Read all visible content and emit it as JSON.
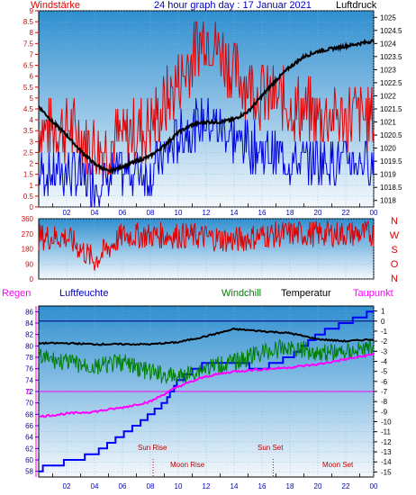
{
  "header": {
    "left_label": "Windstärke",
    "title": "24 hour graph day : 17 Januar 2021",
    "right_label": "Luftdruck"
  },
  "bottom_header": {
    "regen": "Regen",
    "luftfeuchte": "Luftfeuchte",
    "windchill": "Windchill",
    "temperatur": "Temperatur",
    "taupunkt": "Taupunkt"
  },
  "annotations": {
    "sun_rise": "Sun Rise",
    "sun_set": "Sun Set",
    "moon_rise": "Moon Rise",
    "moon_set": "Moon Set"
  },
  "colors": {
    "wind_gust": "#e00000",
    "wind_avg": "#0000e0",
    "pressure": "#000000",
    "humidity": "#0000ff",
    "windchill": "#008000",
    "temperature": "#000000",
    "dewpoint": "#ff00ff",
    "gradient_top": "#2f8fd0",
    "gradient_bottom": "#f4f8fc"
  },
  "chart_data": [
    {
      "type": "line",
      "x_ticks": [
        "02",
        "04",
        "06",
        "08",
        "10",
        "12",
        "14",
        "16",
        "18",
        "20",
        "22",
        "00"
      ],
      "y_left_ticks": [
        "0",
        "0.5",
        "1",
        "1.5",
        "2",
        "2.5",
        "3",
        "3.5",
        "4",
        "4.5",
        "5",
        "5.5",
        "6",
        "6.5",
        "7",
        "7.5",
        "8",
        "8.5",
        "9"
      ],
      "y_left_range": [
        0,
        9
      ],
      "y_right_ticks": [
        "1018",
        "1018.5",
        "1019",
        "1019.5",
        "1020",
        "1020.5",
        "1021",
        "1021.5",
        "1022",
        "1022.5",
        "1023",
        "1023.5",
        "1024",
        "1024.5",
        "1025"
      ],
      "y_right_range": [
        1017.75,
        1025.25
      ],
      "pressure_hours": [
        0,
        1,
        2,
        3,
        4,
        5,
        6,
        7,
        8,
        9,
        10,
        11,
        12,
        13,
        14,
        15,
        16,
        17,
        18,
        19,
        20,
        21,
        22,
        23,
        24
      ],
      "pressure_values": [
        1021.6,
        1021.0,
        1020.5,
        1019.9,
        1019.4,
        1019.1,
        1019.3,
        1019.5,
        1019.7,
        1020.1,
        1020.6,
        1020.9,
        1021.0,
        1021.0,
        1021.1,
        1021.4,
        1022.0,
        1022.6,
        1023.1,
        1023.5,
        1023.7,
        1023.8,
        1023.9,
        1024.0,
        1024.1
      ],
      "gust_profile_hours": [
        0,
        2,
        4,
        6,
        8,
        10,
        12,
        14,
        16,
        18,
        20,
        22,
        24
      ],
      "gust_profile_values": [
        3.5,
        3.5,
        2.5,
        3.0,
        3.5,
        5.5,
        8.0,
        6.0,
        5.0,
        4.5,
        4.0,
        4.0,
        4.0
      ],
      "avg_profile_values": [
        1.5,
        1.5,
        1.0,
        1.5,
        1.5,
        3.0,
        4.0,
        3.0,
        2.5,
        2.0,
        2.0,
        2.0,
        2.0
      ]
    },
    {
      "type": "line",
      "y_ticks": [
        "360",
        "270",
        "180",
        "90",
        "0"
      ],
      "y_range": [
        0,
        360
      ],
      "compass_labels": [
        "N",
        "W",
        "S",
        "O",
        "N"
      ],
      "direction_profile_hours": [
        0,
        2,
        4,
        6,
        8,
        10,
        12,
        14,
        16,
        18,
        20,
        22,
        24
      ],
      "direction_profile_values": [
        250,
        250,
        110,
        260,
        260,
        260,
        250,
        230,
        260,
        270,
        270,
        270,
        270
      ]
    },
    {
      "type": "line",
      "x_ticks": [
        "02",
        "04",
        "06",
        "08",
        "10",
        "12",
        "14",
        "16",
        "18",
        "20",
        "22",
        "00"
      ],
      "humidity_ticks": [
        "58",
        "60",
        "62",
        "64",
        "66",
        "68",
        "70",
        "72",
        "74",
        "76",
        "78",
        "80",
        "82",
        "84",
        "86"
      ],
      "humidity_range": [
        57,
        87
      ],
      "temperature_ticks": [
        "1",
        "0",
        "-1",
        "-2",
        "-3",
        "-4",
        "-5",
        "-6",
        "-7",
        "-8",
        "-9",
        "-10",
        "-11",
        "-12",
        "-13",
        "-14",
        "-15"
      ],
      "temperature_range": [
        -15.5,
        1.5
      ],
      "rain_tick": "0",
      "series": [
        {
          "name": "Luftfeuchte",
          "hours": [
            0,
            4,
            7,
            8,
            9,
            10,
            12,
            14,
            16,
            18,
            20,
            22,
            24
          ],
          "values": [
            58.3,
            61,
            66,
            68,
            70,
            74,
            77,
            77,
            76,
            78,
            82,
            84,
            86
          ]
        },
        {
          "name": "Windchill",
          "hours": [
            0,
            2,
            4,
            6,
            8,
            10,
            12,
            14,
            16,
            18,
            20,
            22,
            24
          ],
          "values": [
            -3.0,
            -3.5,
            -4.0,
            -3.5,
            -4.5,
            -5.0,
            -4.0,
            -3.5,
            -2.5,
            -2.0,
            -2.5,
            -2.5,
            -2.0
          ]
        },
        {
          "name": "Temperatur",
          "hours": [
            0,
            2,
            4,
            6,
            8,
            10,
            12,
            14,
            16,
            18,
            20,
            22,
            24
          ],
          "values": [
            -2.2,
            -2.2,
            -2.3,
            -2.3,
            -2.3,
            -2.1,
            -1.5,
            -0.8,
            -1.0,
            -1.2,
            -1.8,
            -2.0,
            -1.8
          ]
        },
        {
          "name": "Taupunkt",
          "hours": [
            0,
            2,
            4,
            6,
            8,
            10,
            12,
            14,
            16,
            18,
            20,
            22,
            24
          ],
          "values": [
            -9.5,
            -9.2,
            -9.0,
            -8.6,
            -8.0,
            -6.5,
            -5.5,
            -5.0,
            -4.8,
            -4.6,
            -4.3,
            -3.8,
            -3.3
          ]
        }
      ],
      "rain_total": 0,
      "sun_rise_hour": 8.2,
      "sun_set_hour": 16.8
    }
  ]
}
